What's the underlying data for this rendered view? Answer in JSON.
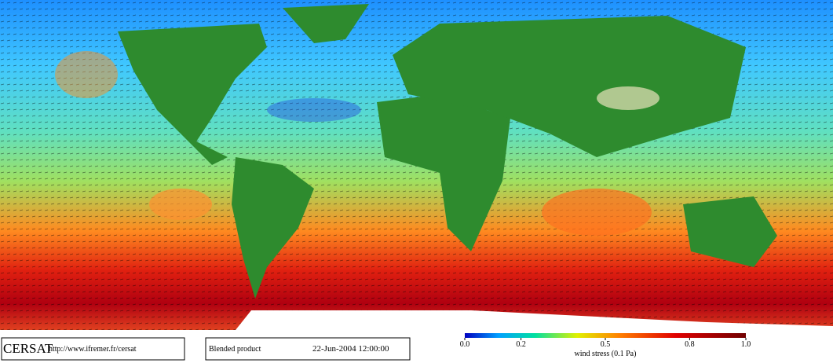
{
  "footer": {
    "logo": "CERSAT",
    "url": "http://www.ifremer.fr/cersat",
    "product": "Blended product",
    "date": "22-Jun-2004 12:00:00"
  },
  "colorbar": {
    "lim": [
      0,
      1
    ],
    "ticks": [
      {
        "value": 0,
        "label": "0.0"
      },
      0.2,
      0.5,
      0.8,
      {
        "value": 1,
        "label": "1.0"
      }
    ],
    "label": "wind stress (0.1 Pa)"
  }
}
